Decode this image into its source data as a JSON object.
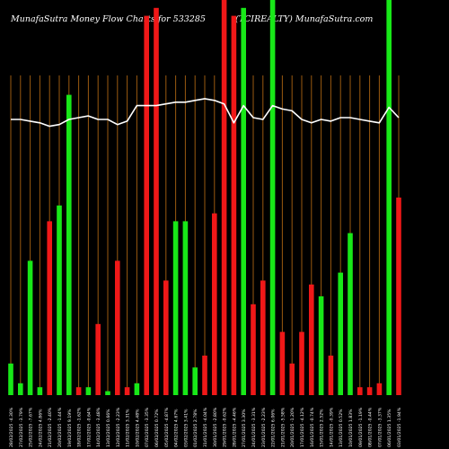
{
  "header": {
    "left": "MunafaSutra  Money Flow  Charts for 533285",
    "right": "(TCIREALTY) MunafaSutra.com"
  },
  "chart_data": {
    "type": "bar",
    "series": [
      {
        "values": [
          8,
          3,
          34,
          2,
          44,
          48,
          76,
          2,
          2,
          18,
          1,
          34,
          2,
          3,
          96,
          98,
          29,
          44,
          44,
          7,
          10,
          46,
          100,
          96,
          98,
          23,
          29,
          100,
          16,
          8,
          16,
          28,
          25,
          10,
          31,
          41,
          2,
          2,
          3,
          100,
          50
        ],
        "colors": [
          "green",
          "green",
          "green",
          "green",
          "red",
          "green",
          "green",
          "red",
          "green",
          "red",
          "green",
          "red",
          "red",
          "green",
          "red",
          "red",
          "red",
          "green",
          "green",
          "green",
          "red",
          "red",
          "red",
          "red",
          "green",
          "red",
          "red",
          "green",
          "red",
          "red",
          "red",
          "red",
          "green",
          "red",
          "green",
          "green",
          "red",
          "red",
          "red",
          "green",
          "red"
        ]
      }
    ],
    "line_values": [
      62,
      62,
      61,
      60,
      58,
      59,
      62,
      63,
      64,
      62,
      62,
      59,
      61,
      70,
      70,
      70,
      71,
      72,
      72,
      73,
      74,
      73,
      71,
      60,
      70,
      63,
      62,
      70,
      68,
      67,
      62,
      60,
      62,
      61,
      63,
      63,
      62,
      61,
      60,
      69,
      63
    ],
    "categories": [
      "28/02/2025",
      "27/02/2025",
      "25/02/2025",
      "24/02/2025",
      "21/02/2025",
      "20/02/2025",
      "19/02/2025",
      "18/02/2025",
      "17/02/2025",
      "14/02/2025",
      "13/02/2025",
      "12/02/2025",
      "11/02/2025",
      "10/02/2025",
      "07/02/2025",
      "06/02/2025",
      "05/02/2025",
      "04/02/2025",
      "03/02/2025",
      "01/02/2025",
      "31/01/2025",
      "30/01/2025",
      "29/01/2025",
      "28/01/2025",
      "27/01/2025",
      "24/01/2025",
      "23/01/2025",
      "22/01/2025",
      "21/01/2025",
      "20/01/2025",
      "17/01/2025",
      "16/01/2025",
      "15/01/2025",
      "14/01/2025",
      "13/01/2025",
      "10/01/2025",
      "09/01/2025",
      "08/01/2025",
      "07/01/2025",
      "06/01/2025",
      "03/01/2025"
    ],
    "pct_labels": [
      "-4.30%",
      "-3.79%",
      "-7.67%",
      "4.86%",
      "-2.40%",
      "-1.44%",
      "9.19%",
      "-1.62%",
      "-0.64%",
      "-3.48%",
      "0.66%",
      "-2.23%",
      "3.31%",
      "4.48%",
      "-3.35%",
      "0.72%",
      "-4.87%",
      "4.67%",
      "3.41%",
      "2.78%",
      "-4.04%",
      "-2.80%",
      "-0.62%",
      "-4.46%",
      "3.30%",
      "-3.31%",
      "-2.23%",
      "6.06%",
      "-5.58%",
      "-1.20%",
      "-4.12%",
      "-0.74%",
      "2.52%",
      "-0.39%",
      "0.52%",
      "1.83%",
      "-1.19%",
      "-0.44%",
      "-3.37%",
      "1.35%",
      "-1.94%"
    ],
    "colors": {
      "bullish": "#18e818",
      "bearish": "#f01818",
      "grid": "#9a5a10",
      "line": "#ffffff",
      "background": "#000000"
    },
    "grid": true
  }
}
